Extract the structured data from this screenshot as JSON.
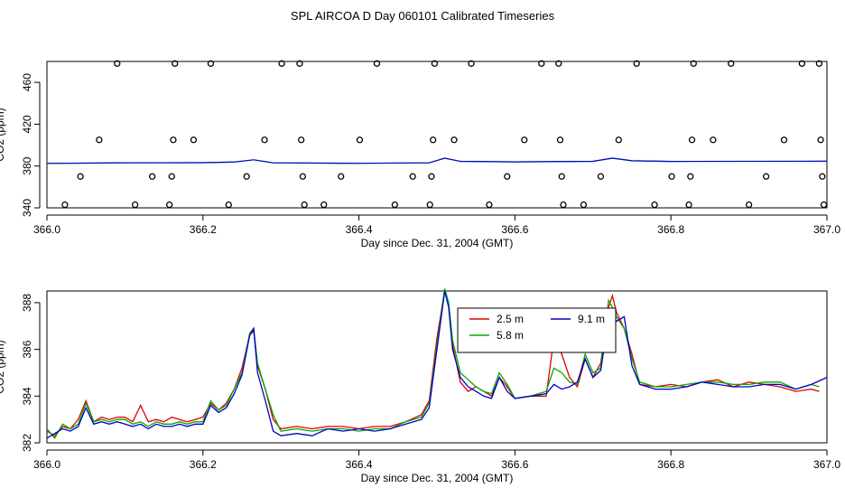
{
  "title": "SPL AIRCOA D  Day 060101  Calibrated Timeseries",
  "chart_data": [
    {
      "type": "scatter",
      "xlabel": "Day since Dec. 31, 2004 (GMT)",
      "ylabel": "CO2 (ppm)",
      "xlim": [
        366.0,
        367.0
      ],
      "ylim": [
        340,
        480
      ],
      "xticks": [
        366.0,
        366.2,
        366.4,
        366.6,
        366.8,
        367.0
      ],
      "xtick_labels": [
        "366.0",
        "366.2",
        "366.4",
        "366.6",
        "366.8",
        "367.0"
      ],
      "yticks": [
        340,
        380,
        420,
        460
      ],
      "ytick_labels": [
        "340",
        "380",
        "420",
        "460"
      ],
      "points": [
        {
          "x": 366.023,
          "y": 343
        },
        {
          "x": 366.043,
          "y": 370
        },
        {
          "x": 366.067,
          "y": 405
        },
        {
          "x": 366.09,
          "y": 478
        },
        {
          "x": 366.113,
          "y": 343
        },
        {
          "x": 366.135,
          "y": 370
        },
        {
          "x": 366.157,
          "y": 343
        },
        {
          "x": 366.16,
          "y": 370
        },
        {
          "x": 366.162,
          "y": 405
        },
        {
          "x": 366.164,
          "y": 478
        },
        {
          "x": 366.188,
          "y": 405
        },
        {
          "x": 366.21,
          "y": 478
        },
        {
          "x": 366.233,
          "y": 343
        },
        {
          "x": 366.256,
          "y": 370
        },
        {
          "x": 366.279,
          "y": 405
        },
        {
          "x": 366.301,
          "y": 478
        },
        {
          "x": 366.324,
          "y": 478
        },
        {
          "x": 366.326,
          "y": 405
        },
        {
          "x": 366.328,
          "y": 370
        },
        {
          "x": 366.33,
          "y": 343
        },
        {
          "x": 366.355,
          "y": 343
        },
        {
          "x": 366.377,
          "y": 370
        },
        {
          "x": 366.401,
          "y": 405
        },
        {
          "x": 366.423,
          "y": 478
        },
        {
          "x": 366.446,
          "y": 343
        },
        {
          "x": 366.469,
          "y": 370
        },
        {
          "x": 366.491,
          "y": 343
        },
        {
          "x": 366.493,
          "y": 370
        },
        {
          "x": 366.495,
          "y": 405
        },
        {
          "x": 366.497,
          "y": 478
        },
        {
          "x": 366.522,
          "y": 405
        },
        {
          "x": 366.544,
          "y": 478
        },
        {
          "x": 366.567,
          "y": 343
        },
        {
          "x": 366.59,
          "y": 370
        },
        {
          "x": 366.612,
          "y": 405
        },
        {
          "x": 366.634,
          "y": 478
        },
        {
          "x": 366.656,
          "y": 478
        },
        {
          "x": 366.658,
          "y": 405
        },
        {
          "x": 366.66,
          "y": 370
        },
        {
          "x": 366.662,
          "y": 343
        },
        {
          "x": 366.688,
          "y": 343
        },
        {
          "x": 366.71,
          "y": 370
        },
        {
          "x": 366.733,
          "y": 405
        },
        {
          "x": 366.756,
          "y": 478
        },
        {
          "x": 366.779,
          "y": 343
        },
        {
          "x": 366.801,
          "y": 370
        },
        {
          "x": 366.823,
          "y": 343
        },
        {
          "x": 366.825,
          "y": 370
        },
        {
          "x": 366.827,
          "y": 405
        },
        {
          "x": 366.829,
          "y": 478
        },
        {
          "x": 366.854,
          "y": 405
        },
        {
          "x": 366.877,
          "y": 478
        },
        {
          "x": 366.9,
          "y": 343
        },
        {
          "x": 366.922,
          "y": 370
        },
        {
          "x": 366.945,
          "y": 405
        },
        {
          "x": 366.968,
          "y": 478
        },
        {
          "x": 366.99,
          "y": 478
        },
        {
          "x": 366.992,
          "y": 405
        },
        {
          "x": 366.994,
          "y": 370
        },
        {
          "x": 366.996,
          "y": 343
        }
      ],
      "line": {
        "x": [
          366.0,
          366.1,
          366.2,
          366.24,
          366.265,
          366.29,
          366.4,
          366.49,
          366.51,
          366.53,
          366.6,
          366.7,
          366.725,
          366.75,
          366.8,
          367.0
        ],
        "y": [
          382.5,
          383,
          383.2,
          383.8,
          386,
          383,
          382.6,
          383,
          387.5,
          384.5,
          384,
          384.5,
          387.5,
          385,
          384.4,
          384.6
        ]
      }
    },
    {
      "type": "line",
      "xlabel": "Day since Dec. 31, 2004 (GMT)",
      "ylabel": "CO2 (ppm)",
      "xlim": [
        366.0,
        367.0
      ],
      "ylim": [
        382,
        388.5
      ],
      "xticks": [
        366.0,
        366.2,
        366.4,
        366.6,
        366.8,
        367.0
      ],
      "xtick_labels": [
        "366.0",
        "366.2",
        "366.4",
        "366.6",
        "366.8",
        "367.0"
      ],
      "yticks": [
        382,
        384,
        386,
        388
      ],
      "ytick_labels": [
        "382",
        "384",
        "386",
        "388"
      ],
      "legend": [
        {
          "name": "2.5 m",
          "color": "#e00000"
        },
        {
          "name": "9.1 m",
          "color": "#0000cc"
        },
        {
          "name": "5.8 m",
          "color": "#00aa00"
        }
      ],
      "series": [
        {
          "name": "2.5 m",
          "color": "#e00000",
          "x": [
            366.0,
            366.01,
            366.02,
            366.03,
            366.04,
            366.05,
            366.06,
            366.07,
            366.08,
            366.09,
            366.1,
            366.11,
            366.12,
            366.13,
            366.14,
            366.15,
            366.16,
            366.17,
            366.18,
            366.19,
            366.2,
            366.21,
            366.22,
            366.23,
            366.24,
            366.25,
            366.26,
            366.265,
            366.27,
            366.28,
            366.29,
            366.3,
            366.32,
            366.34,
            366.36,
            366.38,
            366.4,
            366.42,
            366.44,
            366.46,
            366.48,
            366.49,
            366.5,
            366.51,
            366.515,
            366.52,
            366.53,
            366.54,
            366.55,
            366.56,
            366.57,
            366.58,
            366.59,
            366.6,
            366.62,
            366.64,
            366.65,
            366.66,
            366.67,
            366.68,
            366.69,
            366.7,
            366.71,
            366.72,
            366.725,
            366.73,
            366.74,
            366.75,
            366.76,
            366.78,
            366.8,
            366.82,
            366.84,
            366.86,
            366.88,
            366.9,
            366.92,
            366.94,
            366.96,
            366.98,
            366.99
          ],
          "y": [
            382.5,
            382.3,
            382.7,
            382.6,
            383.0,
            383.8,
            382.9,
            383.1,
            383.0,
            383.1,
            383.1,
            382.9,
            383.6,
            382.9,
            383.0,
            382.9,
            383.1,
            383.0,
            382.9,
            383.0,
            383.1,
            383.7,
            383.4,
            383.7,
            384.3,
            385.2,
            386.6,
            386.8,
            385.3,
            384.3,
            383.0,
            382.6,
            382.7,
            382.6,
            382.7,
            382.7,
            382.6,
            382.7,
            382.7,
            382.9,
            383.2,
            383.8,
            386.5,
            388.5,
            387.9,
            386.2,
            384.6,
            384.2,
            384.4,
            384.2,
            384.0,
            384.8,
            384.4,
            383.9,
            384.0,
            384.0,
            386.5,
            385.8,
            384.8,
            384.4,
            385.6,
            384.8,
            385.4,
            387.8,
            388.3,
            387.6,
            386.9,
            385.8,
            384.5,
            384.4,
            384.5,
            384.4,
            384.6,
            384.7,
            384.4,
            384.6,
            384.5,
            384.4,
            384.2,
            384.3,
            384.2
          ]
        },
        {
          "name": "5.8 m",
          "color": "#00aa00",
          "x": [
            366.0,
            366.01,
            366.02,
            366.03,
            366.04,
            366.05,
            366.06,
            366.07,
            366.08,
            366.09,
            366.1,
            366.11,
            366.12,
            366.13,
            366.14,
            366.15,
            366.16,
            366.17,
            366.18,
            366.19,
            366.2,
            366.21,
            366.22,
            366.23,
            366.24,
            366.25,
            366.26,
            366.265,
            366.27,
            366.28,
            366.29,
            366.3,
            366.32,
            366.34,
            366.36,
            366.38,
            366.4,
            366.42,
            366.44,
            366.46,
            366.48,
            366.49,
            366.5,
            366.51,
            366.515,
            366.52,
            366.53,
            366.54,
            366.55,
            366.56,
            366.57,
            366.58,
            366.59,
            366.6,
            366.62,
            366.64,
            366.65,
            366.66,
            366.67,
            366.68,
            366.69,
            366.7,
            366.71,
            366.72,
            366.725,
            366.73,
            366.74,
            366.75,
            366.76,
            366.78,
            366.8,
            366.82,
            366.84,
            366.86,
            366.88,
            366.9,
            366.92,
            366.94,
            366.96,
            366.98,
            366.99
          ],
          "y": [
            382.6,
            382.2,
            382.8,
            382.6,
            382.8,
            383.7,
            382.9,
            383.0,
            382.9,
            383.0,
            383.0,
            382.8,
            382.9,
            382.7,
            382.9,
            382.8,
            382.8,
            382.9,
            382.8,
            382.9,
            382.9,
            383.8,
            383.4,
            383.6,
            384.3,
            385.0,
            386.7,
            386.9,
            385.4,
            384.3,
            383.2,
            382.5,
            382.6,
            382.5,
            382.6,
            382.6,
            382.5,
            382.6,
            382.6,
            382.9,
            383.1,
            383.7,
            386.2,
            388.6,
            388.0,
            386.4,
            385.0,
            384.7,
            384.4,
            384.2,
            384.1,
            385.0,
            384.5,
            383.9,
            384.0,
            384.2,
            385.2,
            385.0,
            384.6,
            384.5,
            385.8,
            385.0,
            385.2,
            388.1,
            387.8,
            387.4,
            386.9,
            385.6,
            384.6,
            384.4,
            384.4,
            384.5,
            384.6,
            384.6,
            384.5,
            384.5,
            384.6,
            384.6,
            384.3,
            384.5,
            384.4
          ]
        },
        {
          "name": "9.1 m",
          "color": "#0000cc",
          "x": [
            366.0,
            366.01,
            366.02,
            366.03,
            366.04,
            366.05,
            366.06,
            366.07,
            366.08,
            366.09,
            366.1,
            366.11,
            366.12,
            366.13,
            366.14,
            366.15,
            366.16,
            366.17,
            366.18,
            366.19,
            366.2,
            366.21,
            366.22,
            366.23,
            366.24,
            366.25,
            366.26,
            366.265,
            366.27,
            366.28,
            366.29,
            366.3,
            366.32,
            366.34,
            366.36,
            366.38,
            366.4,
            366.42,
            366.44,
            366.46,
            366.48,
            366.49,
            366.5,
            366.51,
            366.515,
            366.52,
            366.53,
            366.54,
            366.55,
            366.56,
            366.57,
            366.58,
            366.59,
            366.6,
            366.62,
            366.64,
            366.65,
            366.66,
            366.67,
            366.68,
            366.69,
            366.7,
            366.71,
            366.72,
            366.725,
            366.73,
            366.74,
            366.75,
            366.76,
            366.78,
            366.8,
            366.82,
            366.84,
            366.86,
            366.88,
            366.9,
            366.92,
            366.94,
            366.96,
            366.98,
            367.0
          ],
          "y": [
            382.2,
            382.4,
            382.6,
            382.5,
            382.7,
            383.5,
            382.8,
            382.9,
            382.8,
            382.9,
            382.8,
            382.7,
            382.8,
            382.6,
            382.8,
            382.7,
            382.7,
            382.8,
            382.7,
            382.8,
            382.8,
            383.6,
            383.3,
            383.5,
            384.1,
            384.9,
            386.6,
            386.9,
            385.0,
            383.8,
            382.5,
            382.3,
            382.4,
            382.3,
            382.6,
            382.5,
            382.6,
            382.5,
            382.6,
            382.8,
            383.0,
            383.5,
            386.0,
            388.5,
            387.8,
            386.0,
            384.8,
            384.4,
            384.2,
            384.0,
            383.9,
            384.8,
            384.2,
            383.9,
            384.0,
            384.1,
            384.5,
            384.3,
            384.4,
            384.6,
            385.6,
            384.8,
            385.1,
            387.3,
            387.5,
            387.2,
            387.4,
            385.3,
            384.5,
            384.3,
            384.3,
            384.4,
            384.6,
            384.5,
            384.4,
            384.4,
            384.5,
            384.5,
            384.3,
            384.5,
            384.8
          ]
        }
      ]
    }
  ]
}
